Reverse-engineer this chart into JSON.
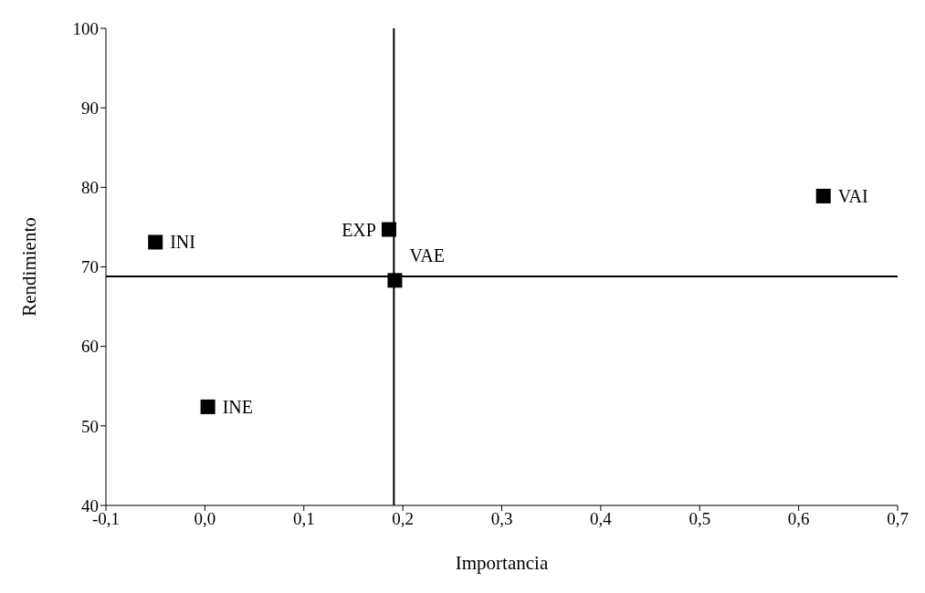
{
  "chart_data": {
    "type": "scatter",
    "xlabel": "Importancia",
    "ylabel": "Rendimiento",
    "x": [
      -0.05,
      0.003,
      0.186,
      0.192,
      0.625
    ],
    "series": [
      {
        "color": "#000000",
        "values": [
          73.1,
          52.4,
          74.7,
          68.3,
          78.9
        ]
      }
    ],
    "xlim": [
      -0.1,
      0.7
    ],
    "xticks": [
      {
        "value": -0.1,
        "label": "-0,1"
      },
      {
        "value": 0,
        "label": "0,0"
      },
      {
        "value": 0.1,
        "label": "0,1"
      },
      {
        "value": 0.2,
        "label": "0,2"
      },
      {
        "value": 0.3,
        "label": "0,3"
      },
      {
        "value": 0.4,
        "label": "0,4"
      },
      {
        "value": 0.5,
        "label": "0,5"
      },
      {
        "value": 0.6,
        "label": "0,6"
      },
      {
        "value": 0.7,
        "label": "0,7"
      }
    ],
    "ylim": [
      40,
      100
    ],
    "yticks": [
      40,
      50,
      60,
      70,
      80,
      90,
      100
    ],
    "ref_lines": [
      {
        "axis": "x",
        "value": 0.191,
        "color": "#000000"
      },
      {
        "axis": "y",
        "value": 68.8,
        "color": "#000000"
      }
    ],
    "annotations": [
      {
        "text": "INI",
        "x": -0.05,
        "y": 73.1
      },
      {
        "text": "INE",
        "x": 0.003,
        "y": 52.4
      },
      {
        "text": "EXP",
        "x": 0.186,
        "y": 74.7
      },
      {
        "text": "VAE",
        "x": 0.192,
        "y": 68.3
      },
      {
        "text": "VAI",
        "x": 0.625,
        "y": 78.9
      }
    ],
    "marker": "square",
    "grid": false,
    "legend": false
  }
}
